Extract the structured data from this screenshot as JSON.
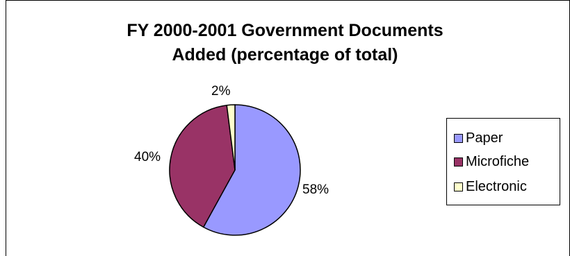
{
  "chart_data": {
    "type": "pie",
    "title_line1": "FY 2000-2001 Government Documents",
    "title_line2": "Added (percentage of total)",
    "slices": [
      {
        "name": "Paper",
        "value": 58,
        "label": "58%",
        "color": "#9999ff"
      },
      {
        "name": "Microfiche",
        "value": 40,
        "label": "40%",
        "color": "#993366"
      },
      {
        "name": "Electronic",
        "value": 2,
        "label": "2%",
        "color": "#ffffcc"
      }
    ],
    "legend_placement": "right"
  }
}
